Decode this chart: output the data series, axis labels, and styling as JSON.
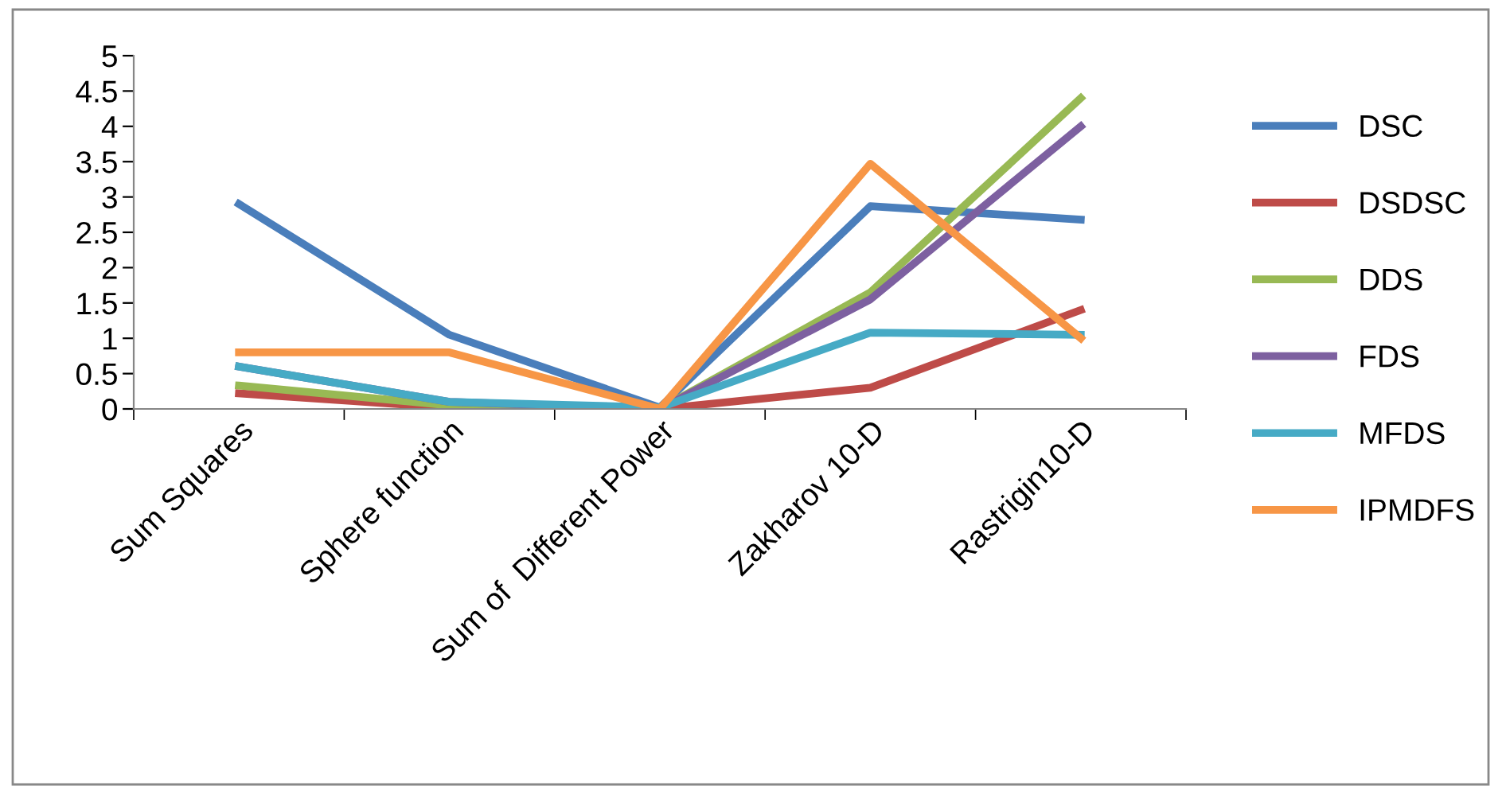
{
  "chart_data": {
    "type": "line",
    "categories": [
      "Sum Squares",
      "Sphere function",
      "Sum of  Different Power",
      "Zakharov 10-D",
      "Rastrigin10-D"
    ],
    "ylim": [
      0,
      5
    ],
    "yticks": [
      0,
      0.5,
      1,
      1.5,
      2,
      2.5,
      3,
      3.5,
      4,
      4.5,
      5
    ],
    "grid": false,
    "legend": "right",
    "marker": "none",
    "line_style": "solid",
    "series": [
      {
        "name": "DSC",
        "color": "#4a7ebb",
        "values": [
          2.9,
          1.05,
          0.02,
          2.87,
          2.68
        ]
      },
      {
        "name": "DSDSC",
        "color": "#be4b48",
        "values": [
          0.22,
          0.02,
          0,
          0.3,
          1.4
        ]
      },
      {
        "name": "DDS",
        "color": "#98b954",
        "values": [
          0.33,
          0.05,
          0,
          1.65,
          4.4
        ]
      },
      {
        "name": "FDS",
        "color": "#7d60a0",
        "values": [
          0.6,
          0.1,
          0,
          1.55,
          4.0
        ]
      },
      {
        "name": "MFDS",
        "color": "#46aac5",
        "values": [
          0.6,
          0.1,
          0.02,
          1.08,
          1.05
        ]
      },
      {
        "name": "IPMDFS",
        "color": "#f79646",
        "values": [
          0.8,
          0.8,
          0,
          3.47,
          1.0
        ]
      }
    ]
  }
}
